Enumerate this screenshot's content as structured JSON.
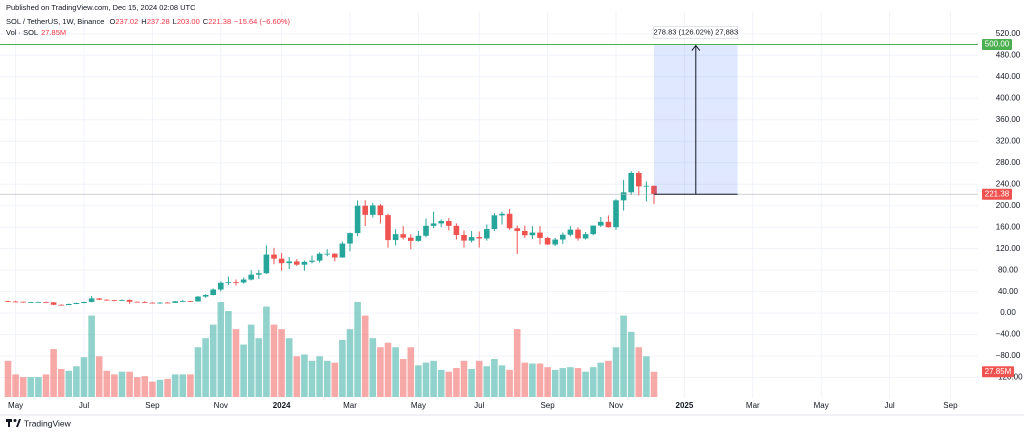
{
  "chart_data": {
    "type": "candlestick",
    "published": "Published on TradingView.com, Dec 15, 2024 02:08 UTC",
    "symbol": "SOL / TetherUS, 1W, Binance",
    "ohlc_legend": [
      {
        "key": "O",
        "text": "237.02"
      },
      {
        "key": "H",
        "text": "237.28"
      },
      {
        "key": "L",
        "text": "203.00"
      },
      {
        "key": "C",
        "text": "221.38"
      }
    ],
    "change": "−15.64 (−6.60%)",
    "volume_name": "Vol · SOL",
    "volume_label": "27.85M",
    "brand": "TradingView",
    "up_color": "#26a69a",
    "down_color": "#ef5350",
    "ylim": [
      -158,
      542
    ],
    "yticks": [
      {
        "value": 520,
        "label": "520.00"
      },
      {
        "value": 480,
        "label": "480.00"
      },
      {
        "value": 440,
        "label": "440.00"
      },
      {
        "value": 400,
        "label": "400.00"
      },
      {
        "value": 360,
        "label": "360.00"
      },
      {
        "value": 320,
        "label": "320.00"
      },
      {
        "value": 280,
        "label": "280.00"
      },
      {
        "value": 240,
        "label": "240.00"
      },
      {
        "value": 200,
        "label": "200.00"
      },
      {
        "value": 160,
        "label": "160.00"
      },
      {
        "value": 120,
        "label": "120.00"
      },
      {
        "value": 80,
        "label": "80.00"
      },
      {
        "value": 40,
        "label": "40.00"
      },
      {
        "value": 0,
        "label": "0.00"
      },
      {
        "value": -40,
        "label": "−40.00"
      },
      {
        "value": -80,
        "label": "−80.00"
      },
      {
        "value": -120,
        "label": "−120.00"
      }
    ],
    "grid": true,
    "hline": {
      "value": 500,
      "label": "500.00",
      "color": "#4caf50"
    },
    "measure_label": "278.83 (126.02%) 27,883",
    "categories": [
      null,
      "May",
      null,
      null,
      null,
      null,
      null,
      null,
      null,
      null,
      "Jul",
      null,
      null,
      null,
      null,
      null,
      null,
      null,
      null,
      "Sep",
      null,
      null,
      null,
      null,
      null,
      null,
      null,
      null,
      "Nov",
      null,
      null,
      null,
      null,
      null,
      null,
      null,
      "2024",
      null,
      null,
      null,
      null,
      null,
      null,
      null,
      null,
      "Mar",
      null,
      null,
      null,
      null,
      null,
      null,
      null,
      null,
      "May",
      null,
      null,
      null,
      null,
      null,
      null,
      null,
      "Jul",
      null,
      null,
      null,
      null,
      null,
      null,
      null,
      null,
      "Sep",
      null,
      null,
      null,
      null,
      null,
      null,
      null,
      null,
      "Nov",
      null,
      null,
      null,
      null,
      null,
      null,
      null,
      null,
      "2025",
      null,
      null,
      null,
      null,
      null,
      null,
      null,
      null,
      "Mar",
      null,
      null,
      null,
      null,
      null,
      null,
      null,
      null,
      "May",
      null,
      null,
      null,
      null,
      null,
      null,
      null,
      null,
      "Jul",
      null,
      null,
      null,
      null,
      null,
      null,
      null,
      "Sep",
      null,
      null
    ],
    "open": [
      22.5,
      21.6,
      21.2,
      20.3,
      20.6,
      20.8,
      20.1,
      15.6,
      15.0,
      17.0,
      18.9,
      20.9,
      27.4,
      25.0,
      24.2,
      23.3,
      24.5,
      21.2,
      20.3,
      19.4,
      19.1,
      19.6,
      19.1,
      22.0,
      22.6,
      21.7,
      30.8,
      33.8,
      44.0,
      56.6,
      57.6,
      57.0,
      62.5,
      71.6,
      74.3,
      109.0,
      101.4,
      93.0,
      96.2,
      90.2,
      95.5,
      97.7,
      110.5,
      110.6,
      103.6,
      129.5,
      149.0,
      200.0,
      183.0,
      200.5,
      182.5,
      136.0,
      147.0,
      140.5,
      134.5,
      144.0,
      162.5,
      167.0,
      171.5,
      162.5,
      145.5,
      135.0,
      141.5,
      139.0,
      156.5,
      182.0,
      185.0,
      158.0,
      153.0,
      145.0,
      150.0,
      140.0,
      127.8,
      137.0,
      146.0,
      155.5,
      139.0,
      147.0,
      163.0,
      170.0,
      160.0,
      210.0,
      225.0,
      261.0,
      236.0,
      237.02,
      null,
      null,
      null,
      null,
      null,
      null,
      null,
      null,
      null,
      null,
      null,
      null,
      null,
      null,
      null,
      null,
      null,
      null,
      null,
      null,
      null,
      null,
      null,
      null,
      null,
      null,
      null,
      null,
      null,
      null,
      null,
      null,
      null,
      null,
      null,
      null,
      null,
      null,
      null,
      null,
      null
    ],
    "high": [
      23.3,
      23.0,
      21.5,
      21.1,
      21.3,
      21.6,
      20.4,
      16.4,
      17.8,
      19.5,
      21.1,
      32.0,
      27.8,
      25.8,
      24.6,
      25.4,
      25.6,
      21.5,
      22.1,
      20.2,
      20.3,
      20.6,
      22.4,
      24.5,
      23.0,
      31.7,
      35.3,
      46.0,
      59.0,
      68.0,
      62.5,
      66.0,
      80.0,
      80.2,
      126.0,
      121.5,
      112.0,
      104.5,
      100.5,
      98.0,
      107.0,
      113.0,
      119.0,
      111.5,
      133.0,
      150.0,
      210.0,
      210.0,
      205.0,
      203.0,
      185.5,
      156.0,
      162.0,
      147.0,
      153.0,
      176.0,
      189.0,
      174.5,
      177.0,
      167.0,
      154.0,
      153.0,
      152.0,
      165.0,
      186.0,
      189.0,
      194.0,
      163.0,
      163.0,
      162.0,
      162.0,
      142.0,
      140.0,
      150.0,
      162.0,
      160.0,
      151.0,
      163.0,
      179.0,
      182.0,
      212.0,
      248.0,
      264.0,
      264.5,
      245.0,
      237.28,
      null,
      null,
      null,
      null,
      null,
      null,
      null,
      null,
      null,
      null,
      null,
      null,
      null,
      null,
      null,
      null,
      null,
      null,
      null,
      null,
      null,
      null,
      null,
      null,
      null,
      null,
      null,
      null,
      null,
      null,
      null,
      null,
      null,
      null,
      null,
      null,
      null,
      null,
      null,
      null,
      null
    ],
    "low": [
      20.5,
      20.8,
      19.5,
      19.8,
      19.8,
      19.6,
      14.9,
      14.7,
      14.9,
      16.5,
      18.3,
      20.0,
      24.2,
      23.0,
      22.1,
      22.6,
      17.3,
      19.5,
      18.9,
      18.5,
      17.3,
      18.8,
      19.0,
      21.8,
      20.8,
      21.4,
      28.6,
      33.0,
      40.5,
      52.5,
      51.5,
      55.0,
      61.0,
      63.6,
      73.0,
      91.0,
      79.0,
      82.0,
      88.0,
      79.0,
      92.5,
      94.2,
      106.0,
      96.5,
      103.0,
      115.0,
      143.0,
      162.0,
      178.0,
      167.0,
      122.0,
      126.0,
      137.0,
      119.0,
      133.0,
      141.0,
      158.0,
      160.0,
      154.0,
      137.0,
      122.0,
      131.5,
      122.0,
      135.0,
      153.0,
      165.0,
      155.0,
      110.0,
      140.0,
      138.0,
      128.0,
      127.0,
      125.0,
      129.0,
      143.0,
      135.0,
      137.0,
      145.0,
      160.5,
      159.0,
      155.0,
      191.0,
      220.0,
      219.0,
      208.0,
      203.0,
      null,
      null,
      null,
      null,
      null,
      null,
      null,
      null,
      null,
      null,
      null,
      null,
      null,
      null,
      null,
      null,
      null,
      null,
      null,
      null,
      null,
      null,
      null,
      null,
      null,
      null,
      null,
      null,
      null,
      null,
      null,
      null,
      null,
      null,
      null,
      null,
      null,
      null,
      null,
      null,
      null
    ],
    "close": [
      21.6,
      21.2,
      20.3,
      20.6,
      20.8,
      20.1,
      15.6,
      15.0,
      17.0,
      18.9,
      20.9,
      27.4,
      25.0,
      24.2,
      23.3,
      24.5,
      21.2,
      20.3,
      19.4,
      19.1,
      19.6,
      19.1,
      22.0,
      22.6,
      21.7,
      30.8,
      33.8,
      44.0,
      56.6,
      57.6,
      57.0,
      62.5,
      71.6,
      74.3,
      109.0,
      101.4,
      93.0,
      96.2,
      90.2,
      95.5,
      97.7,
      110.5,
      110.6,
      103.6,
      129.5,
      149.0,
      200.0,
      183.0,
      200.5,
      182.5,
      136.0,
      147.0,
      140.5,
      134.5,
      144.0,
      162.5,
      167.0,
      171.5,
      162.5,
      145.5,
      135.0,
      141.5,
      139.0,
      156.5,
      182.0,
      185.0,
      158.0,
      153.0,
      145.0,
      150.0,
      140.0,
      127.8,
      137.0,
      146.0,
      155.5,
      139.0,
      147.0,
      163.0,
      170.0,
      160.0,
      210.0,
      225.0,
      261.0,
      236.0,
      237.0,
      221.38,
      null,
      null,
      null,
      null,
      null,
      null,
      null,
      null,
      null,
      null,
      null,
      null,
      null,
      null,
      null,
      null,
      null,
      null,
      null,
      null,
      null,
      null,
      null,
      null,
      null,
      null,
      null,
      null,
      null,
      null,
      null,
      null,
      null,
      null,
      null,
      null,
      null,
      null,
      null,
      null,
      null
    ],
    "volume": [
      40,
      25,
      22,
      22,
      22,
      25,
      53,
      31,
      29,
      34,
      44,
      90,
      45,
      29,
      25,
      28,
      28,
      22,
      23,
      17,
      19,
      20,
      25,
      25,
      25,
      55,
      65,
      80,
      105,
      95,
      75,
      58,
      80,
      65,
      100,
      80,
      75,
      65,
      45,
      47,
      40,
      45,
      40,
      38,
      63,
      75,
      105,
      90,
      65,
      55,
      60,
      55,
      42,
      55,
      35,
      38,
      40,
      30,
      28,
      32,
      40,
      31,
      40,
      34,
      42,
      35,
      30,
      75,
      38,
      37,
      37,
      33,
      30,
      32,
      33,
      32,
      28,
      33,
      38,
      40,
      55,
      90,
      72,
      55,
      45,
      27.85,
      null,
      null,
      null,
      null,
      null,
      null,
      null,
      null,
      null,
      null,
      null,
      null,
      null,
      null,
      null,
      null,
      null,
      null,
      null,
      null,
      null,
      null,
      null,
      null,
      null,
      null,
      null,
      null,
      null,
      null,
      null,
      null,
      null,
      null,
      null,
      null,
      null,
      null,
      null,
      null,
      null
    ]
  }
}
